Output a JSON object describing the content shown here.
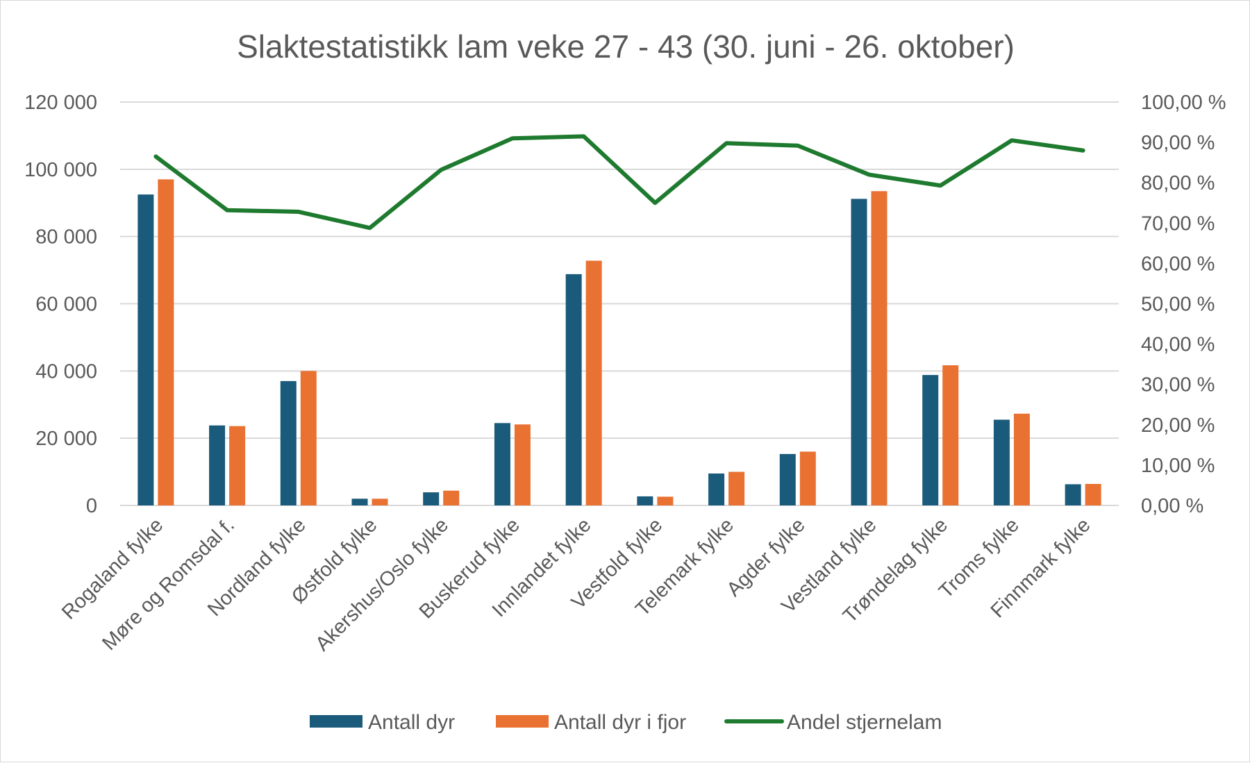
{
  "chart_data": {
    "type": "bar",
    "title": "Slaktestatistikk lam veke 27 - 43 (30. juni - 26. oktober)",
    "categories": [
      "Rogaland fylke",
      "Møre og Romsdal f.",
      "Nordland fylke",
      "Østfold fylke",
      "Akershus/Oslo  fylke",
      "Buskerud fylke",
      "Innlandet fylke",
      "Vestfold fylke",
      "Telemark fylke",
      "Agder fylke",
      "Vestland fylke",
      "Trøndelag fylke",
      "Troms fylke",
      "Finnmark fylke"
    ],
    "series": [
      {
        "name": "Antall dyr",
        "type": "bar",
        "axis": "left",
        "color": "#1a5a7a",
        "values": [
          92500,
          23800,
          37000,
          2000,
          3900,
          24500,
          68800,
          2700,
          9500,
          15300,
          91200,
          38800,
          25500,
          6300
        ]
      },
      {
        "name": "Antall dyr i fjor",
        "type": "bar",
        "axis": "left",
        "color": "#e97132",
        "values": [
          97000,
          23600,
          40000,
          2000,
          4400,
          24100,
          72800,
          2600,
          10000,
          16000,
          93500,
          41700,
          27300,
          6400
        ]
      },
      {
        "name": "Andel stjernelam",
        "type": "line",
        "axis": "right",
        "color": "#1e7a2e",
        "values": [
          86.5,
          73.2,
          72.8,
          68.8,
          83.2,
          91.0,
          91.5,
          75.0,
          89.8,
          89.2,
          82.0,
          79.3,
          90.5,
          88.0
        ]
      }
    ],
    "y_left": {
      "range": [
        0,
        120000
      ],
      "ticks": [
        0,
        20000,
        40000,
        60000,
        80000,
        100000,
        120000
      ],
      "tick_labels": [
        "0",
        "20 000",
        "40 000",
        "60 000",
        "80 000",
        "100 000",
        "120 000"
      ]
    },
    "y_right": {
      "range": [
        0,
        100
      ],
      "ticks": [
        0,
        10,
        20,
        30,
        40,
        50,
        60,
        70,
        80,
        90,
        100
      ],
      "tick_labels": [
        "0,00 %",
        "10,00 %",
        "20,00 %",
        "30,00 %",
        "40,00 %",
        "50,00 %",
        "60,00 %",
        "70,00 %",
        "80,00 %",
        "90,00 %",
        "100,00 %"
      ]
    },
    "grid": true,
    "legend_position": "bottom"
  }
}
